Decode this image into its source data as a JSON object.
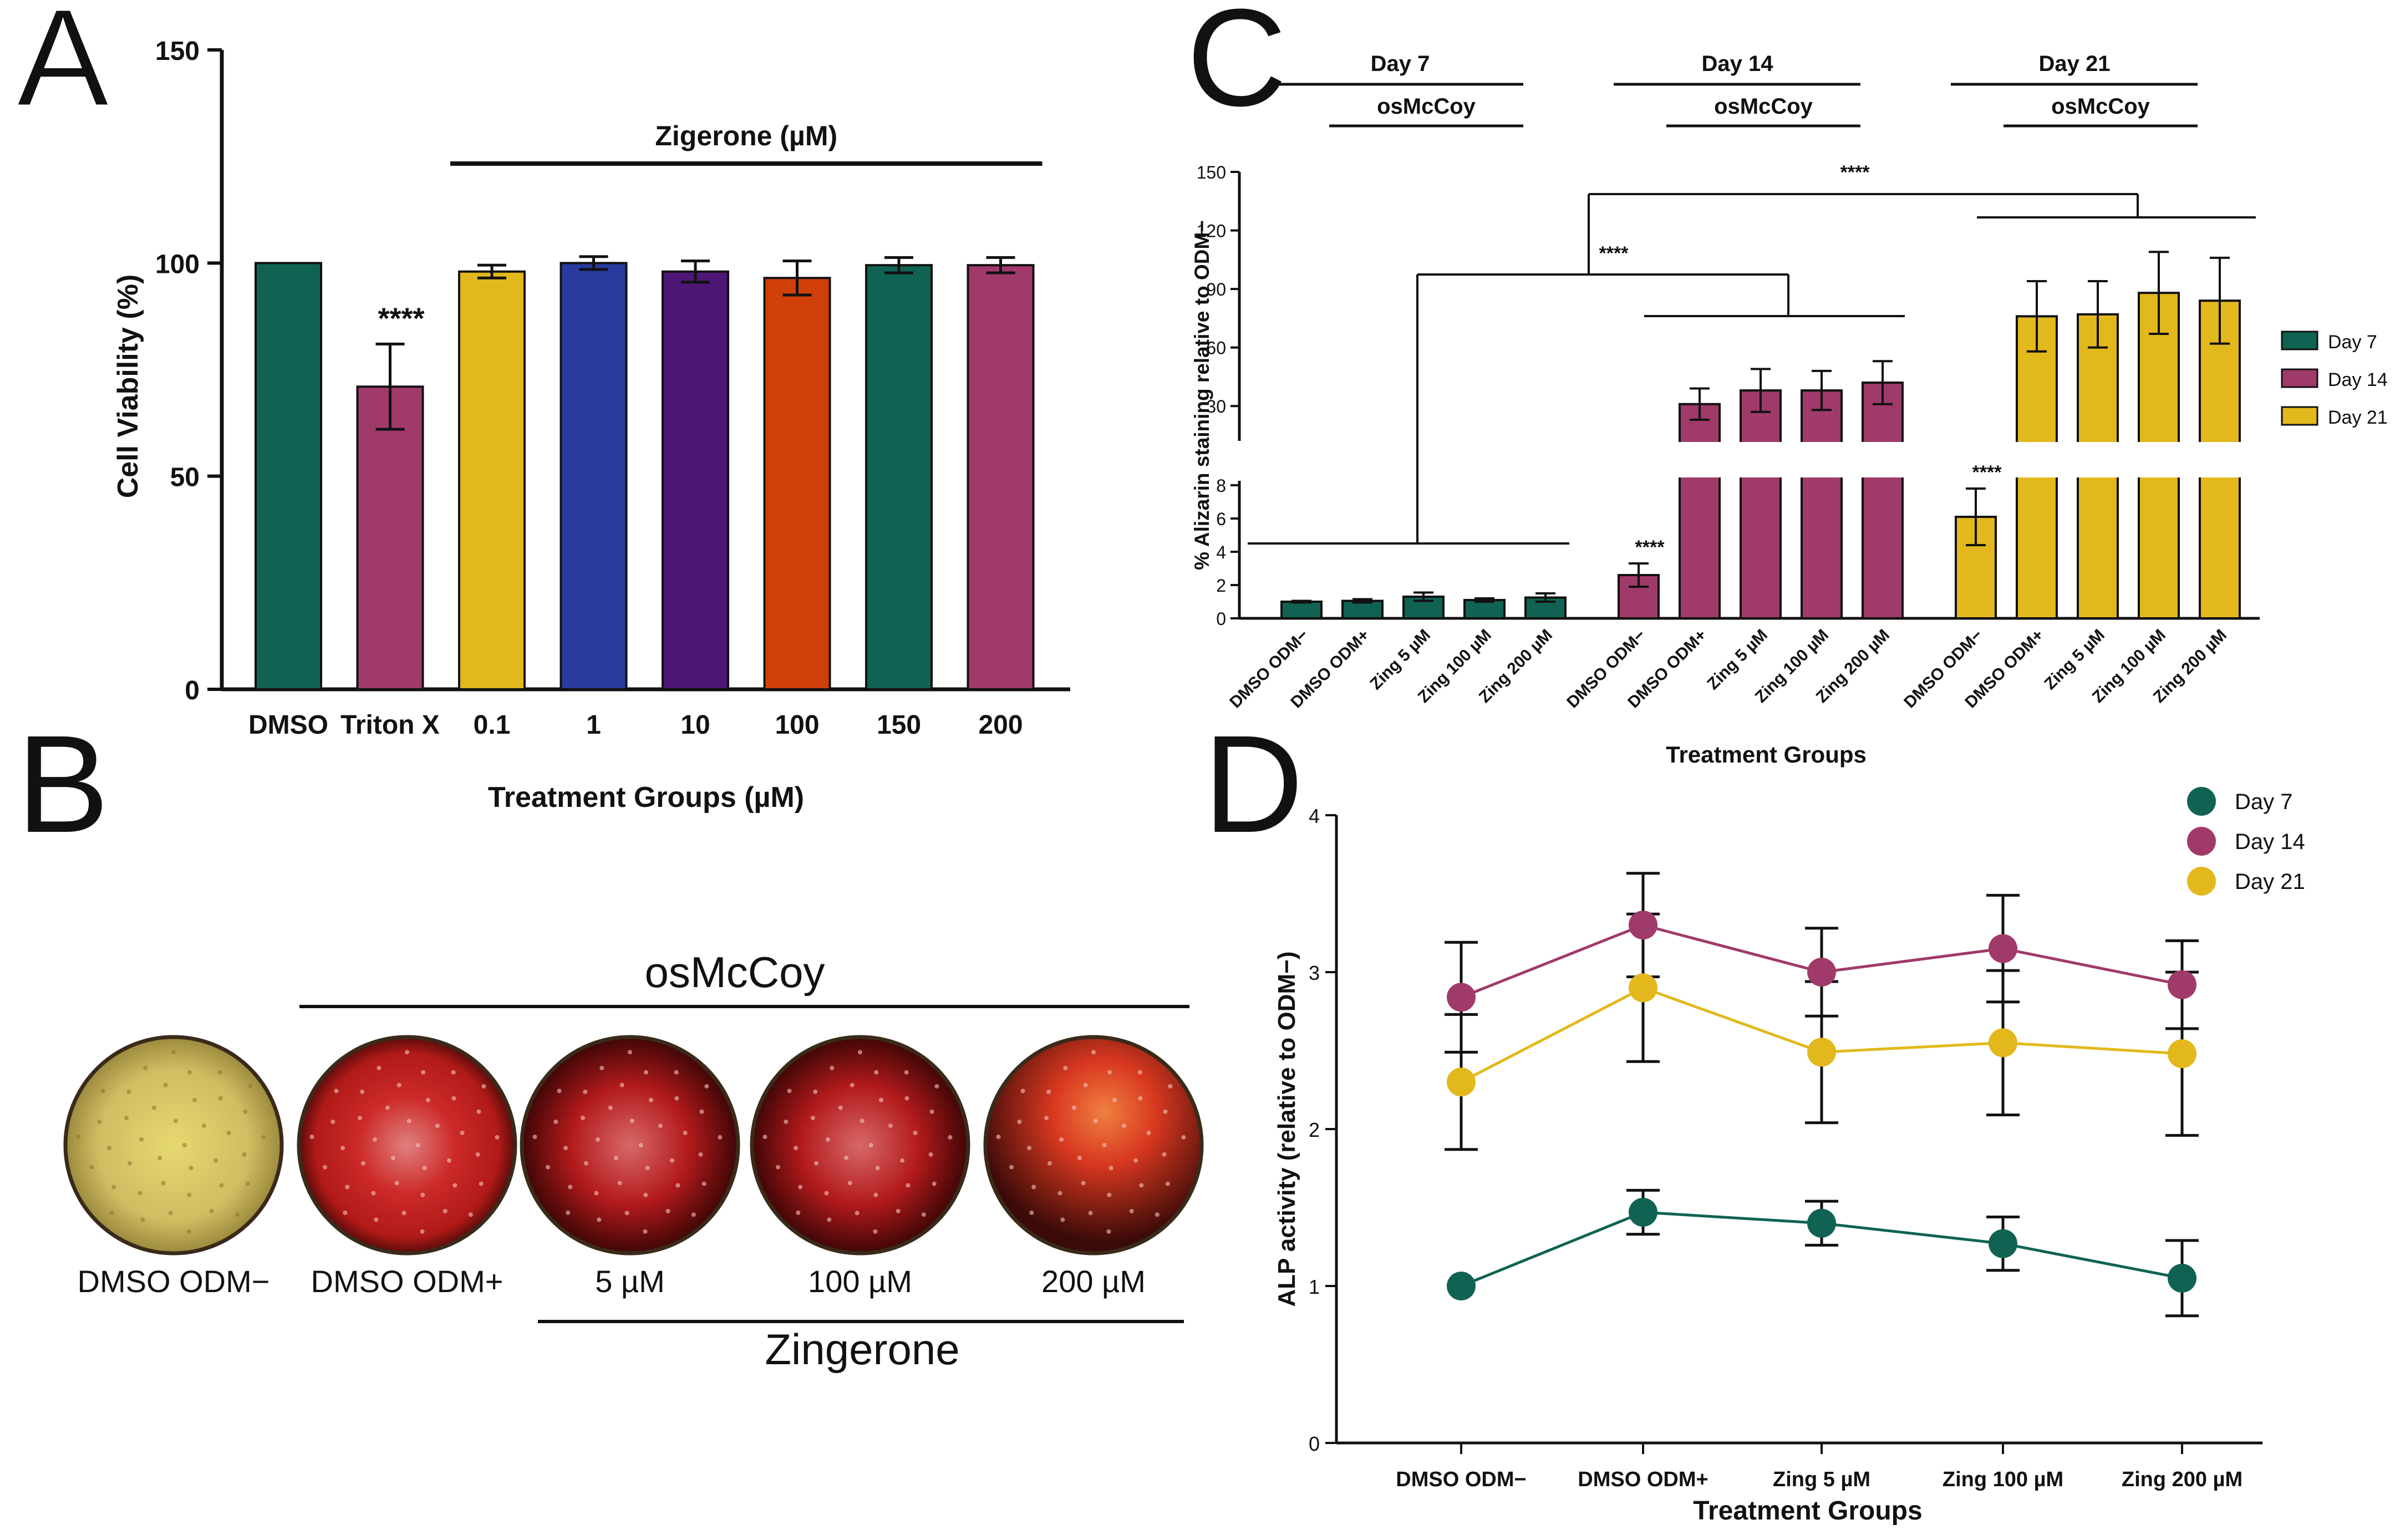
{
  "panels": {
    "a": "A",
    "b": "B",
    "c": "C",
    "d": "D"
  },
  "chart_data": [
    {
      "id": "A",
      "type": "bar",
      "ylabel": "Cell Viability (%)",
      "xlabel": "Treatment Groups (µM)",
      "ylim": [
        0,
        150
      ],
      "yticks": [
        "0",
        "50",
        "100",
        "150"
      ],
      "group_label": "Zigerone (µM)",
      "categories": [
        "DMSO",
        "Triton X",
        "0.1",
        "1",
        "10",
        "100",
        "150",
        "200"
      ],
      "values": [
        100,
        71,
        98,
        100,
        98,
        96.5,
        99.5,
        99.5
      ],
      "errors": [
        0,
        10,
        1.5,
        1.5,
        2.5,
        4,
        1.8,
        1.8
      ],
      "colors": [
        "#106353",
        "#a03a6a",
        "#e2b81c",
        "#2a3a9e",
        "#4e1675",
        "#d04008",
        "#106353",
        "#a03a6a"
      ],
      "annotations": [
        "",
        "****",
        "",
        "",
        "",
        "",
        "",
        ""
      ]
    },
    {
      "id": "C",
      "type": "bar",
      "ylabel": "% Alizarin staining relative to ODM−",
      "xlabel": "Treatment Groups",
      "axis_break": {
        "lower": [
          0,
          8
        ],
        "upper": [
          15,
          150
        ]
      },
      "yticks_lower": [
        "0",
        "2",
        "4",
        "6",
        "8"
      ],
      "yticks_upper": [
        "30",
        "60",
        "90",
        "120",
        "150"
      ],
      "headers": [
        {
          "day": "Day 7",
          "medium": "osMcCoy",
          "color": "#1e6e1e"
        },
        {
          "day": "Day 14",
          "medium": "osMcCoy",
          "color": "#a0205a"
        },
        {
          "day": "Day 21",
          "medium": "osMcCoy",
          "color": "#c8a000"
        }
      ],
      "categories": [
        "DMSO ODM−",
        "DMSO ODM+",
        "Zing 5 µM",
        "Zing 100 µM",
        "Zing 200 µM"
      ],
      "series": [
        {
          "name": "Day 7",
          "color": "#106353",
          "values": [
            1.0,
            1.05,
            1.3,
            1.1,
            1.25
          ],
          "errors": [
            0.05,
            0.1,
            0.25,
            0.1,
            0.25
          ]
        },
        {
          "name": "Day 14",
          "color": "#a03a6a",
          "values": [
            2.6,
            31,
            38,
            38,
            42
          ],
          "errors": [
            0.7,
            8,
            11,
            10,
            11
          ]
        },
        {
          "name": "Day 21",
          "color": "#e2b81c",
          "values": [
            6.1,
            76,
            77,
            88,
            84
          ],
          "errors": [
            1.7,
            18,
            17,
            21,
            22
          ]
        }
      ],
      "significance": [
        "****",
        "****",
        "****",
        "****"
      ]
    },
    {
      "id": "D",
      "type": "line",
      "ylabel": "ALP activity (relative to ODM−)",
      "xlabel": "Treatment Groups",
      "ylim": [
        0,
        4
      ],
      "yticks": [
        "0",
        "1",
        "2",
        "3",
        "4"
      ],
      "categories": [
        "DMSO ODM−",
        "DMSO ODM+",
        "Zing 5 µM",
        "Zing 100 µM",
        "Zing 200 µM"
      ],
      "series": [
        {
          "name": "Day 7",
          "color": "#106353",
          "values": [
            1.0,
            1.47,
            1.4,
            1.27,
            1.05
          ],
          "errors": [
            0,
            0.14,
            0.14,
            0.17,
            0.24
          ]
        },
        {
          "name": "Day 14",
          "color": "#a03a6a",
          "values": [
            2.84,
            3.3,
            3.0,
            3.15,
            2.92
          ],
          "errors": [
            0.35,
            0.33,
            0.28,
            0.34,
            0.28
          ]
        },
        {
          "name": "Day 21",
          "color": "#e2b81c",
          "values": [
            2.3,
            2.9,
            2.49,
            2.55,
            2.48
          ],
          "errors": [
            0.43,
            0.47,
            0.45,
            0.46,
            0.52
          ]
        }
      ]
    }
  ],
  "panel_b": {
    "header": "osMcCoy",
    "footer": "Zingerone",
    "wells": [
      {
        "label": "DMSO ODM−",
        "stain": "yellow"
      },
      {
        "label": "DMSO ODM+",
        "stain": "red"
      },
      {
        "label": "5 µM",
        "stain": "red"
      },
      {
        "label": "100 µM",
        "stain": "red"
      },
      {
        "label": "200 µM",
        "stain": "red"
      }
    ]
  }
}
